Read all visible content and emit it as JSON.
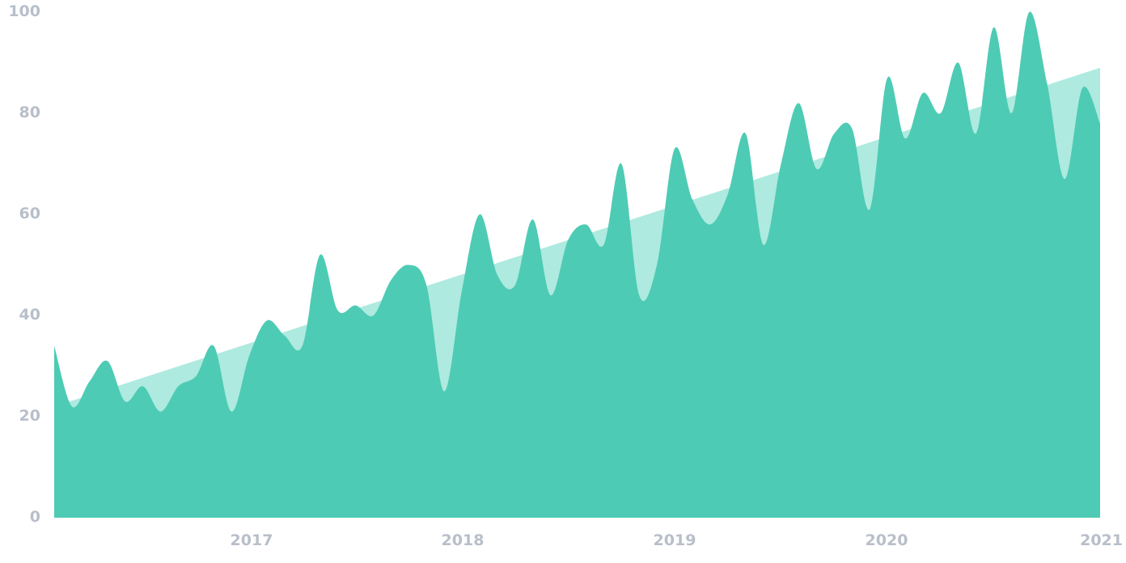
{
  "chart_data": {
    "type": "area",
    "title": "",
    "xlabel": "",
    "ylabel": "",
    "ylim": [
      0,
      100
    ],
    "y_ticks": [
      "0",
      "20",
      "40",
      "60",
      "80",
      "100"
    ],
    "x_ticks": [
      "2017",
      "2018",
      "2019",
      "2020",
      "2021"
    ],
    "grid": false,
    "legend": "none",
    "x_range": [
      "2016-02",
      "2021-01"
    ],
    "series": [
      {
        "role": "trend",
        "color": "#aeeadf",
        "x": [
          "2016-02",
          "2021-01"
        ],
        "values": [
          22,
          89
        ]
      },
      {
        "role": "actual",
        "color": "#4ecbb4",
        "x": [
          "2016-02",
          "2016-03",
          "2016-04",
          "2016-05",
          "2016-06",
          "2016-07",
          "2016-08",
          "2016-09",
          "2016-10",
          "2016-11",
          "2016-12",
          "2017-01",
          "2017-02",
          "2017-03",
          "2017-04",
          "2017-05",
          "2017-06",
          "2017-07",
          "2017-08",
          "2017-09",
          "2017-10",
          "2017-11",
          "2017-12",
          "2018-01",
          "2018-02",
          "2018-03",
          "2018-04",
          "2018-05",
          "2018-06",
          "2018-07",
          "2018-08",
          "2018-09",
          "2018-10",
          "2018-11",
          "2018-12",
          "2019-01",
          "2019-02",
          "2019-03",
          "2019-04",
          "2019-05",
          "2019-06",
          "2019-07",
          "2019-08",
          "2019-09",
          "2019-10",
          "2019-11",
          "2019-12",
          "2020-01",
          "2020-02",
          "2020-03",
          "2020-04",
          "2020-05",
          "2020-06",
          "2020-07",
          "2020-08",
          "2020-09",
          "2020-10",
          "2020-11",
          "2020-12",
          "2021-01"
        ],
        "values": [
          34,
          22,
          27,
          31,
          23,
          26,
          21,
          26,
          28,
          34,
          21,
          32,
          39,
          36,
          34,
          52,
          41,
          42,
          40,
          47,
          50,
          46,
          25,
          45,
          60,
          48,
          46,
          59,
          44,
          55,
          58,
          54,
          70,
          44,
          50,
          73,
          63,
          58,
          64,
          76,
          54,
          70,
          82,
          69,
          76,
          77,
          61,
          87,
          75,
          84,
          80,
          90,
          76,
          97,
          80,
          100,
          86,
          67,
          85,
          78
        ]
      }
    ]
  }
}
